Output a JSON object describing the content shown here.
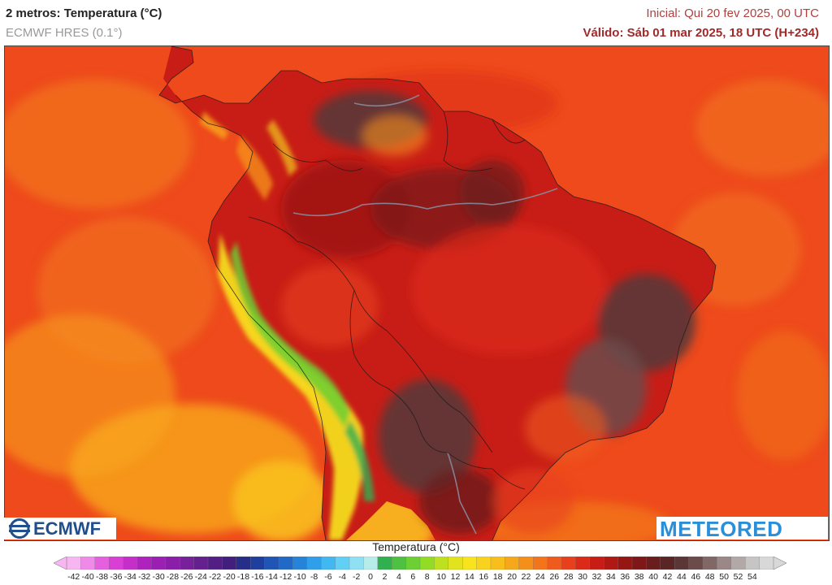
{
  "header": {
    "title": "2 metros: Temperatura (°C)",
    "model": "ECMWF HRES (0.1°)",
    "initial": "Inicial: Qui 20 fev 2025, 00 UTC",
    "valid": "Válido: Sáb 01 mar 2025, 18 UTC (H+234)"
  },
  "logos": {
    "left": "ECMWF",
    "right": "METEORED"
  },
  "legend": {
    "title": "Temperatura (°C)",
    "ticks": [
      "-42",
      "-40",
      "-38",
      "-36",
      "-34",
      "-32",
      "-30",
      "-28",
      "-26",
      "-24",
      "-22",
      "-20",
      "-18",
      "-16",
      "-14",
      "-12",
      "-10",
      "-8",
      "-6",
      "-4",
      "-2",
      "0",
      "2",
      "4",
      "6",
      "8",
      "10",
      "12",
      "14",
      "16",
      "18",
      "20",
      "22",
      "24",
      "26",
      "28",
      "30",
      "32",
      "34",
      "36",
      "38",
      "40",
      "42",
      "44",
      "46",
      "48",
      "50",
      "52",
      "54"
    ],
    "colors": [
      "#f7b5f2",
      "#f08ae8",
      "#e65fde",
      "#d93fd4",
      "#c52ec8",
      "#ae23bd",
      "#9b1fb3",
      "#8a1ea8",
      "#78209c",
      "#652090",
      "#531f85",
      "#40207c",
      "#262e8a",
      "#1f3f9e",
      "#1f55b4",
      "#2069c7",
      "#2584d9",
      "#2e9fe8",
      "#41b8f0",
      "#62cff4",
      "#8ee0f2",
      "#b8eceb",
      "#31b052",
      "#4fc142",
      "#6ccf33",
      "#93dc25",
      "#bde11e",
      "#e2e21e",
      "#f7e41c",
      "#f8d21c",
      "#f8bf1c",
      "#f7a71c",
      "#f58f1c",
      "#f2751c",
      "#ee5b1c",
      "#e8401c",
      "#dc2a18",
      "#c81d16",
      "#b01814",
      "#961614",
      "#7e1818",
      "#6a1d1d",
      "#5a2525",
      "#5a3636",
      "#6c4b4b",
      "#826767",
      "#9a8787",
      "#b2a8a8",
      "#c7c4c4",
      "#d8d8d8"
    ]
  },
  "map": {
    "region": "South America",
    "variable": "2 m temperature",
    "dominant_colors": {
      "ocean": "#ee4a1c",
      "ocean_cooler": "#f2751c",
      "ocean_south": "#f8bf1c",
      "land_hot": "#c81d16",
      "land_hottest": "#5a3636",
      "andes_cool": "#6ccf33",
      "andes_warm": "#f7e41c",
      "rivers": "#8a8a9a",
      "borders": "#1a1a1a"
    }
  }
}
